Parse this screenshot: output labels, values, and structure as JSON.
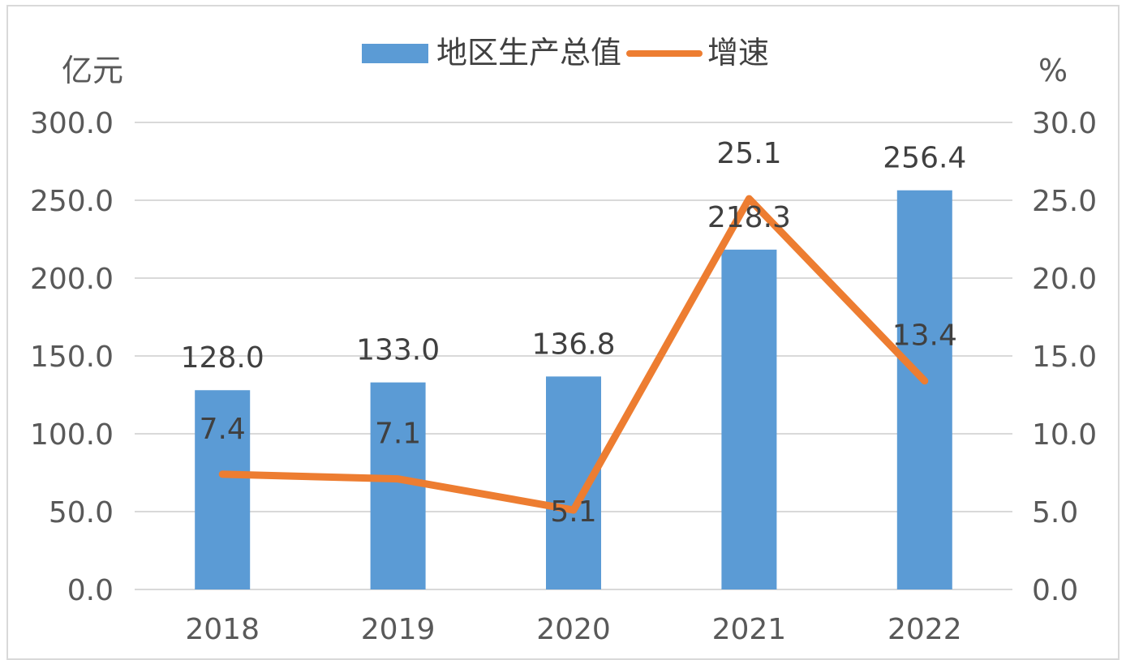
{
  "chart_data": {
    "type": "bar",
    "categories": [
      "2018",
      "2019",
      "2020",
      "2021",
      "2022"
    ],
    "series": [
      {
        "name": "地区生产总值",
        "type": "bar",
        "axis": "left",
        "values": [
          128.0,
          133.0,
          136.8,
          218.3,
          256.4
        ],
        "labels": [
          "128.0",
          "133.0",
          "136.8",
          "218.3",
          "256.4"
        ],
        "color": "#5b9bd5"
      },
      {
        "name": "增速",
        "type": "line",
        "axis": "right",
        "values": [
          7.4,
          7.1,
          5.1,
          25.1,
          13.4
        ],
        "labels": [
          "7.4",
          "7.1",
          "5.1",
          "25.1",
          "13.4"
        ],
        "color": "#ed7d31"
      }
    ],
    "left_axis": {
      "unit": "亿元",
      "ylim": [
        0,
        300
      ],
      "ticks": [
        "0.0",
        "50.0",
        "100.0",
        "150.0",
        "200.0",
        "250.0",
        "300.0"
      ]
    },
    "right_axis": {
      "unit": "%",
      "ylim": [
        0,
        30
      ],
      "ticks": [
        "0.0",
        "5.0",
        "10.0",
        "15.0",
        "20.0",
        "25.0",
        "30.0"
      ]
    },
    "grid": true,
    "legend": "top-center"
  }
}
